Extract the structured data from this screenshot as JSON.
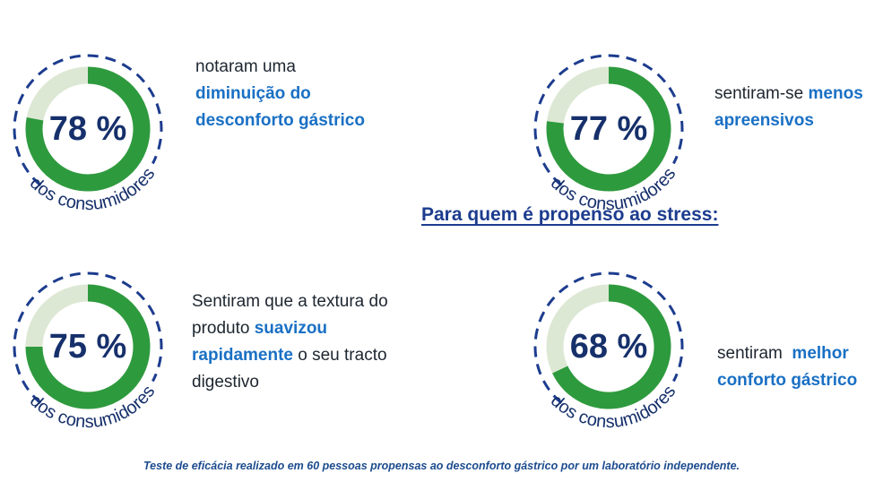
{
  "accent_color": "#2e9a3e",
  "ring_track_color": "#dde8d4",
  "dash_color": "#1c3c8e",
  "stats": [
    {
      "value": "78 %",
      "fraction": 0.78,
      "label": "dos consumidores",
      "text_before": "notaram uma",
      "highlight": "diminuição do desconforto gástrico",
      "text_after": ""
    },
    {
      "value": "77 %",
      "fraction": 0.77,
      "label": "dos consumidores",
      "text_before": "sentiram-se",
      "highlight": "menos apreensivos",
      "text_after": ""
    },
    {
      "value": "75 %",
      "fraction": 0.75,
      "label": "dos consumidores",
      "text_before": "Sentiram que a textura do produto",
      "highlight": "suavizou rapidamente",
      "text_after": "o seu tracto digestivo"
    },
    {
      "value": "68 %",
      "fraction": 0.68,
      "label": "dos consumidores",
      "text_before": "sentiram",
      "highlight": "melhor conforto gástrico",
      "text_after": ""
    }
  ],
  "heading": "Para quem é propenso ao stress:",
  "footnote": "Teste de eficácia realizado em 60 pessoas propensas ao desconforto gástrico por um laboratório independente."
}
